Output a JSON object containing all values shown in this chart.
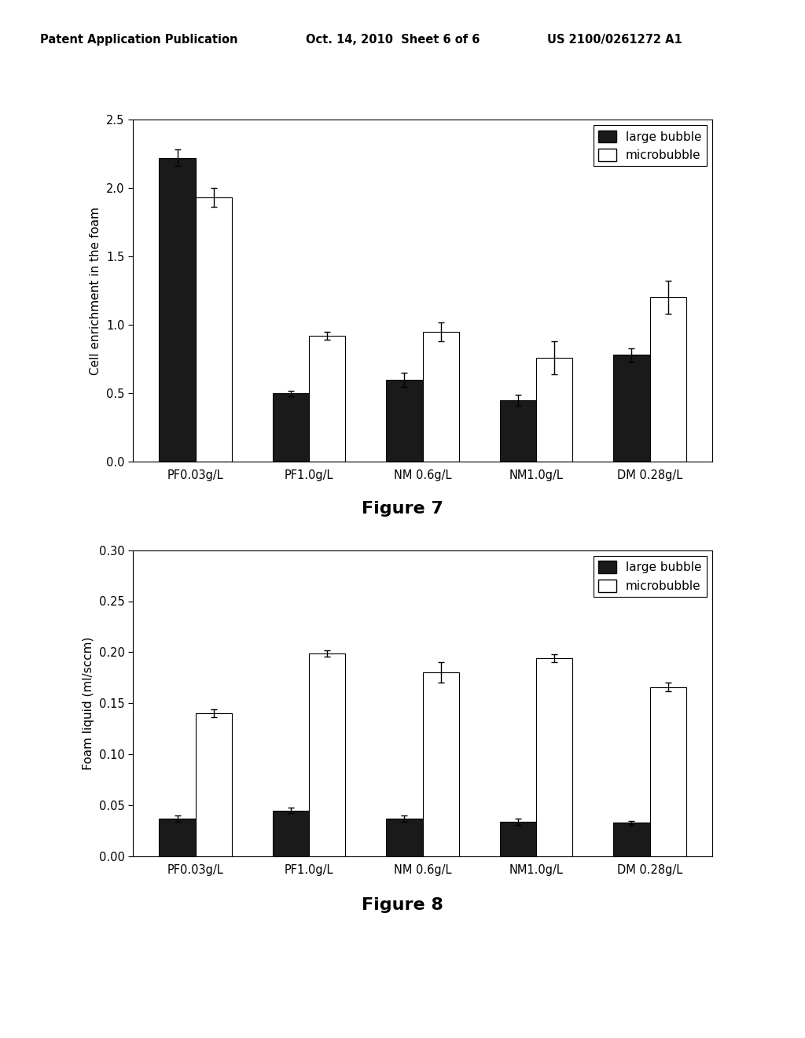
{
  "header_left": "Patent Application Publication",
  "header_mid": "Oct. 14, 2010  Sheet 6 of 6",
  "header_right": "US 2100/0261272 A1",
  "fig7": {
    "title": "Figure 7",
    "ylabel": "Cell enrichment in the foam",
    "categories": [
      "PF0.03g/L",
      "PF1.0g/L",
      "NM 0.6g/L",
      "NM1.0g/L",
      "DM 0.28g/L"
    ],
    "large_bubble": [
      2.22,
      0.5,
      0.6,
      0.45,
      0.78
    ],
    "microbubble": [
      1.93,
      0.92,
      0.95,
      0.76,
      1.2
    ],
    "large_bubble_err": [
      0.06,
      0.02,
      0.05,
      0.04,
      0.05
    ],
    "microbubble_err": [
      0.07,
      0.03,
      0.07,
      0.12,
      0.12
    ],
    "ylim": [
      0,
      2.5
    ],
    "yticks": [
      0,
      0.5,
      1.0,
      1.5,
      2.0,
      2.5
    ]
  },
  "fig8": {
    "title": "Figure 8",
    "ylabel": "Foam liquid (ml/sccm)",
    "categories": [
      "PF0.03g/L",
      "PF1.0g/L",
      "NM 0.6g/L",
      "NM1.0g/L",
      "DM 0.28g/L"
    ],
    "large_bubble": [
      0.037,
      0.045,
      0.037,
      0.034,
      0.033
    ],
    "microbubble": [
      0.14,
      0.199,
      0.18,
      0.194,
      0.166
    ],
    "large_bubble_err": [
      0.003,
      0.003,
      0.003,
      0.003,
      0.002
    ],
    "microbubble_err": [
      0.004,
      0.003,
      0.01,
      0.004,
      0.004
    ],
    "ylim": [
      0,
      0.3
    ],
    "yticks": [
      0,
      0.05,
      0.1,
      0.15,
      0.2,
      0.25,
      0.3
    ]
  },
  "bar_width": 0.32,
  "large_bubble_color": "#1a1a1a",
  "microbubble_color": "#ffffff",
  "bar_edge_color": "#000000",
  "legend_large": "large bubble",
  "legend_micro": "microbubble",
  "background_color": "#ffffff"
}
